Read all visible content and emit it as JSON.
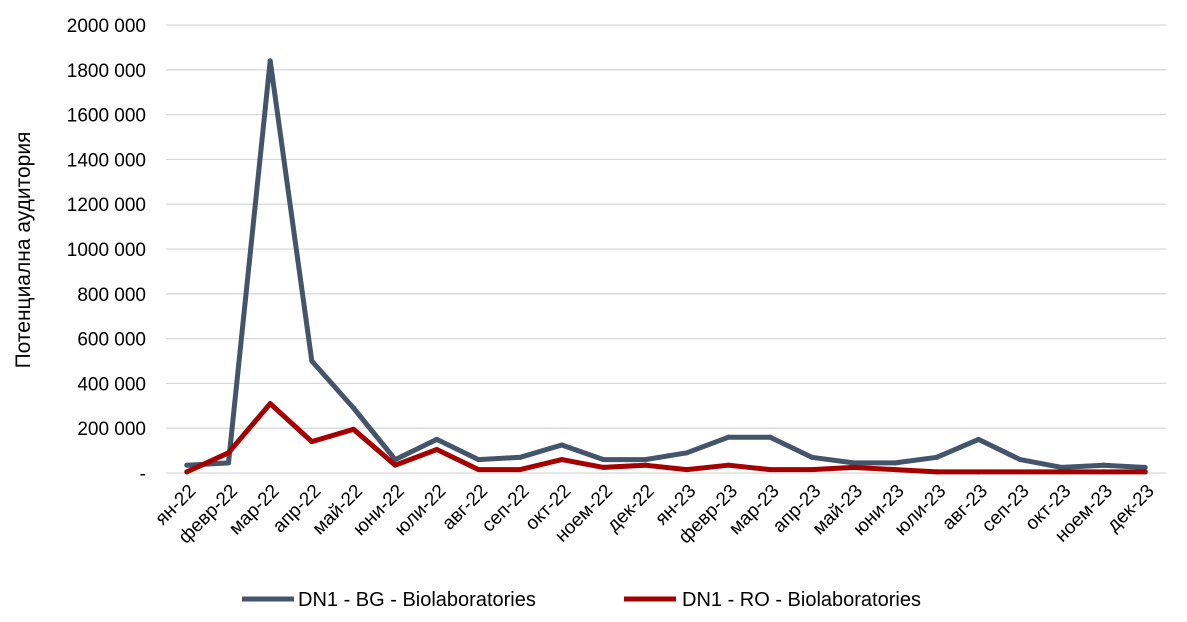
{
  "chart_data": {
    "type": "line",
    "title": "",
    "xlabel": "",
    "ylabel": "Потенциална аудитория",
    "ylim": [
      0,
      2000000
    ],
    "y_ticks": [
      {
        "value": 0,
        "label": "-"
      },
      {
        "value": 200000,
        "label": "200 000"
      },
      {
        "value": 400000,
        "label": "400 000"
      },
      {
        "value": 600000,
        "label": "600 000"
      },
      {
        "value": 800000,
        "label": "800 000"
      },
      {
        "value": 1000000,
        "label": "1000 000"
      },
      {
        "value": 1200000,
        "label": "1200 000"
      },
      {
        "value": 1400000,
        "label": "1400 000"
      },
      {
        "value": 1600000,
        "label": "1600 000"
      },
      {
        "value": 1800000,
        "label": "1800 000"
      },
      {
        "value": 2000000,
        "label": "2000 000"
      }
    ],
    "grid": "horizontal",
    "legend_position": "bottom",
    "categories": [
      "ян-22",
      "февр-22",
      "мар-22",
      "апр-22",
      "май-22",
      "юни-22",
      "юли-22",
      "авг-22",
      "сеп-22",
      "окт-22",
      "ноем-22",
      "дек-22",
      "ян-23",
      "февр-23",
      "мар-23",
      "апр-23",
      "май-23",
      "юни-23",
      "юли-23",
      "авг-23",
      "сеп-23",
      "окт-23",
      "ноем-23",
      "дек-23"
    ],
    "series": [
      {
        "name": "DN1 - BG - Biolaboratories",
        "color": "#44546a",
        "values": [
          35000,
          45000,
          1840000,
          500000,
          290000,
          60000,
          150000,
          60000,
          70000,
          125000,
          60000,
          60000,
          90000,
          160000,
          160000,
          70000,
          45000,
          45000,
          70000,
          150000,
          60000,
          25000,
          35000,
          25000
        ]
      },
      {
        "name": "DN1 - RO - Biolaboratories",
        "color": "#a50000",
        "values": [
          5000,
          90000,
          310000,
          140000,
          195000,
          35000,
          105000,
          15000,
          15000,
          60000,
          25000,
          35000,
          15000,
          35000,
          15000,
          15000,
          25000,
          15000,
          5000,
          5000,
          5000,
          5000,
          5000,
          5000
        ]
      }
    ]
  }
}
